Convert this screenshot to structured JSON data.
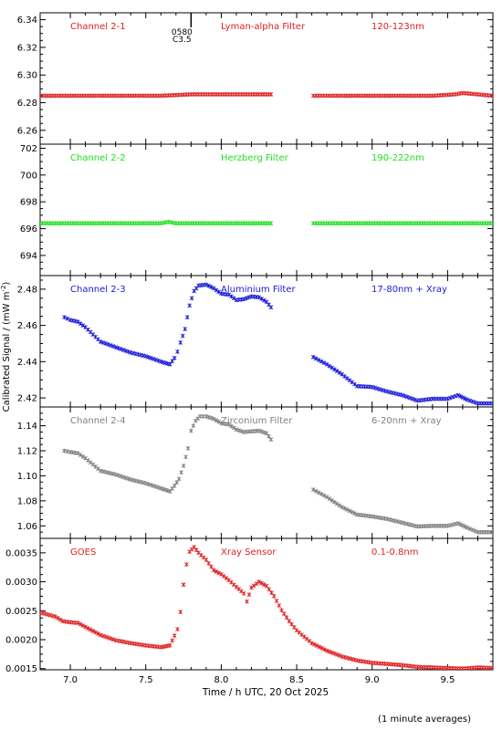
{
  "chart_data": [
    {
      "type": "scatter",
      "channel": "Channel 2-1",
      "filter": "Lyman-alpha Filter",
      "band": "120-123nm",
      "color": "#e02020",
      "ylim": [
        6.25,
        6.345
      ],
      "yticks": [
        "6.26",
        "6.28",
        "6.30",
        "6.32",
        "6.34"
      ],
      "yticks_values": [
        6.26,
        6.28,
        6.3,
        6.32,
        6.34
      ],
      "event": {
        "x": 7.8,
        "labels": [
          "0580",
          "C3.5"
        ]
      },
      "segments": [
        {
          "x": [
            6.8,
            7.0,
            7.2,
            7.4,
            7.6,
            7.8,
            8.0,
            8.2,
            8.33
          ],
          "y": [
            6.285,
            6.285,
            6.285,
            6.285,
            6.285,
            6.286,
            6.286,
            6.286,
            6.286
          ]
        },
        {
          "x": [
            8.61,
            8.8,
            9.0,
            9.2,
            9.4,
            9.55,
            9.6,
            9.7,
            9.8
          ],
          "y": [
            6.285,
            6.285,
            6.285,
            6.285,
            6.285,
            6.286,
            6.287,
            6.286,
            6.285
          ]
        }
      ]
    },
    {
      "type": "scatter",
      "channel": "Channel 2-2",
      "filter": "Herzberg Filter",
      "band": "190-222nm",
      "color": "#22e022",
      "ylim": [
        692.5,
        702.3
      ],
      "yticks": [
        "694",
        "696",
        "698",
        "700",
        "702"
      ],
      "yticks_values": [
        694,
        696,
        698,
        700,
        702
      ],
      "segments": [
        {
          "x": [
            6.8,
            7.0,
            7.2,
            7.4,
            7.6,
            7.65,
            7.7,
            7.9,
            8.1,
            8.33
          ],
          "y": [
            696.4,
            696.4,
            696.4,
            696.4,
            696.4,
            696.5,
            696.4,
            696.4,
            696.4,
            696.4
          ]
        },
        {
          "x": [
            8.61,
            8.8,
            9.0,
            9.2,
            9.4,
            9.6,
            9.8
          ],
          "y": [
            696.4,
            696.4,
            696.4,
            696.4,
            696.4,
            696.4,
            696.4
          ]
        }
      ]
    },
    {
      "type": "scatter",
      "channel": "Channel 2-3",
      "filter": "Aluminium Filter",
      "band": "17-80nm + Xray",
      "color": "#1a1ad8",
      "ylim": [
        2.415,
        2.4875
      ],
      "yticks": [
        "2.42",
        "2.44",
        "2.46",
        "2.48"
      ],
      "yticks_values": [
        2.42,
        2.44,
        2.46,
        2.48
      ],
      "segments": [
        {
          "x": [
            6.96,
            7.0,
            7.05,
            7.1,
            7.15,
            7.2,
            7.3,
            7.4,
            7.5,
            7.6,
            7.66,
            7.69,
            7.71,
            7.73,
            7.76,
            7.79,
            7.82,
            7.85,
            7.9,
            7.95,
            8.0,
            8.05,
            8.1,
            8.15,
            8.2,
            8.25,
            8.3,
            8.33
          ],
          "y": [
            2.4645,
            2.463,
            2.462,
            2.459,
            2.455,
            2.451,
            2.448,
            2.445,
            2.443,
            2.44,
            2.4385,
            2.442,
            2.4455,
            2.4505,
            2.458,
            2.471,
            2.479,
            2.482,
            2.4825,
            2.4805,
            2.4775,
            2.477,
            2.474,
            2.4745,
            2.476,
            2.4755,
            2.473,
            2.47
          ]
        },
        {
          "x": [
            8.61,
            8.7,
            8.8,
            8.9,
            9.0,
            9.1,
            9.2,
            9.3,
            9.4,
            9.5,
            9.57,
            9.63,
            9.7,
            9.8
          ],
          "y": [
            2.4425,
            2.4385,
            2.433,
            2.4265,
            2.426,
            2.4235,
            2.4215,
            2.4185,
            2.4195,
            2.4195,
            2.4215,
            2.419,
            2.417,
            2.417
          ]
        }
      ]
    },
    {
      "type": "scatter",
      "channel": "Channel 2-4",
      "filter": "Zirconium Filter",
      "band": "6-20nm + Xray",
      "color": "#808080",
      "ylim": [
        1.05,
        1.155
      ],
      "yticks": [
        "1.06",
        "1.08",
        "1.10",
        "1.12",
        "1.14"
      ],
      "yticks_values": [
        1.06,
        1.08,
        1.1,
        1.12,
        1.14
      ],
      "segments": [
        {
          "x": [
            6.96,
            7.0,
            7.05,
            7.1,
            7.15,
            7.2,
            7.3,
            7.4,
            7.5,
            7.6,
            7.66,
            7.69,
            7.72,
            7.75,
            7.78,
            7.8,
            7.83,
            7.86,
            7.9,
            7.95,
            8.0,
            8.05,
            8.1,
            8.15,
            8.2,
            8.25,
            8.3,
            8.33
          ],
          "y": [
            1.12,
            1.119,
            1.118,
            1.114,
            1.109,
            1.104,
            1.101,
            1.097,
            1.094,
            1.09,
            1.0875,
            1.092,
            1.0975,
            1.108,
            1.122,
            1.136,
            1.144,
            1.1475,
            1.1475,
            1.1455,
            1.142,
            1.141,
            1.137,
            1.135,
            1.1355,
            1.136,
            1.134,
            1.129
          ]
        },
        {
          "x": [
            8.61,
            8.7,
            8.8,
            8.9,
            9.0,
            9.1,
            9.2,
            9.3,
            9.4,
            9.5,
            9.57,
            9.63,
            9.7,
            9.8
          ],
          "y": [
            1.089,
            1.083,
            1.075,
            1.069,
            1.0675,
            1.0655,
            1.0625,
            1.0595,
            1.06,
            1.06,
            1.062,
            1.0585,
            1.055,
            1.055
          ]
        }
      ]
    },
    {
      "type": "scatter",
      "channel": "GOES",
      "filter": "Xray Sensor",
      "band": "0.1-0.8nm",
      "color": "#e02020",
      "ylim": [
        0.00148,
        0.00375
      ],
      "yticks": [
        "0.0015",
        "0.0020",
        "0.0025",
        "0.0030",
        "0.0035"
      ],
      "yticks_values": [
        0.0015,
        0.002,
        0.0025,
        0.003,
        0.0035
      ],
      "segments": [
        {
          "x": [
            6.8,
            6.9,
            6.95,
            7.0,
            7.05,
            7.1,
            7.2,
            7.3,
            7.4,
            7.5,
            7.6,
            7.66,
            7.69,
            7.71,
            7.73,
            7.75,
            7.77,
            7.79,
            7.82,
            7.85,
            7.9,
            7.95,
            8.0,
            8.05,
            8.1,
            8.15,
            8.17,
            8.2,
            8.25,
            8.3,
            8.35,
            8.4,
            8.45,
            8.5,
            8.6,
            8.7,
            8.8,
            8.9,
            9.0,
            9.1,
            9.2,
            9.3,
            9.4,
            9.5,
            9.6,
            9.7,
            9.8
          ],
          "y": [
            0.00247,
            0.0024,
            0.00232,
            0.0023,
            0.00229,
            0.00222,
            0.00208,
            0.00199,
            0.00194,
            0.0019,
            0.00187,
            0.0019,
            0.00207,
            0.00218,
            0.00248,
            0.00295,
            0.0033,
            0.00352,
            0.0036,
            0.0035,
            0.00338,
            0.0032,
            0.00313,
            0.00303,
            0.00291,
            0.0028,
            0.00266,
            0.0029,
            0.003,
            0.00293,
            0.00275,
            0.00251,
            0.00232,
            0.00216,
            0.00194,
            0.00181,
            0.00171,
            0.00164,
            0.0016,
            0.00158,
            0.00156,
            0.00153,
            0.00152,
            0.00151,
            0.0015,
            0.00152,
            0.00151
          ]
        }
      ]
    }
  ],
  "axes": {
    "xlim": [
      6.8,
      9.8
    ],
    "xticks": [
      "7.0",
      "7.5",
      "8.0",
      "8.5",
      "9.0",
      "9.5"
    ],
    "xticks_values": [
      7.0,
      7.5,
      8.0,
      8.5,
      9.0,
      9.5
    ],
    "xlabel": "Time / h UTC, 20 Oct 2025",
    "ylabel": "Calibrated Signal / (mW m",
    "ylabel_exp": "-2",
    "ylabel_end": ")",
    "footnote": "(1 minute averages)"
  }
}
